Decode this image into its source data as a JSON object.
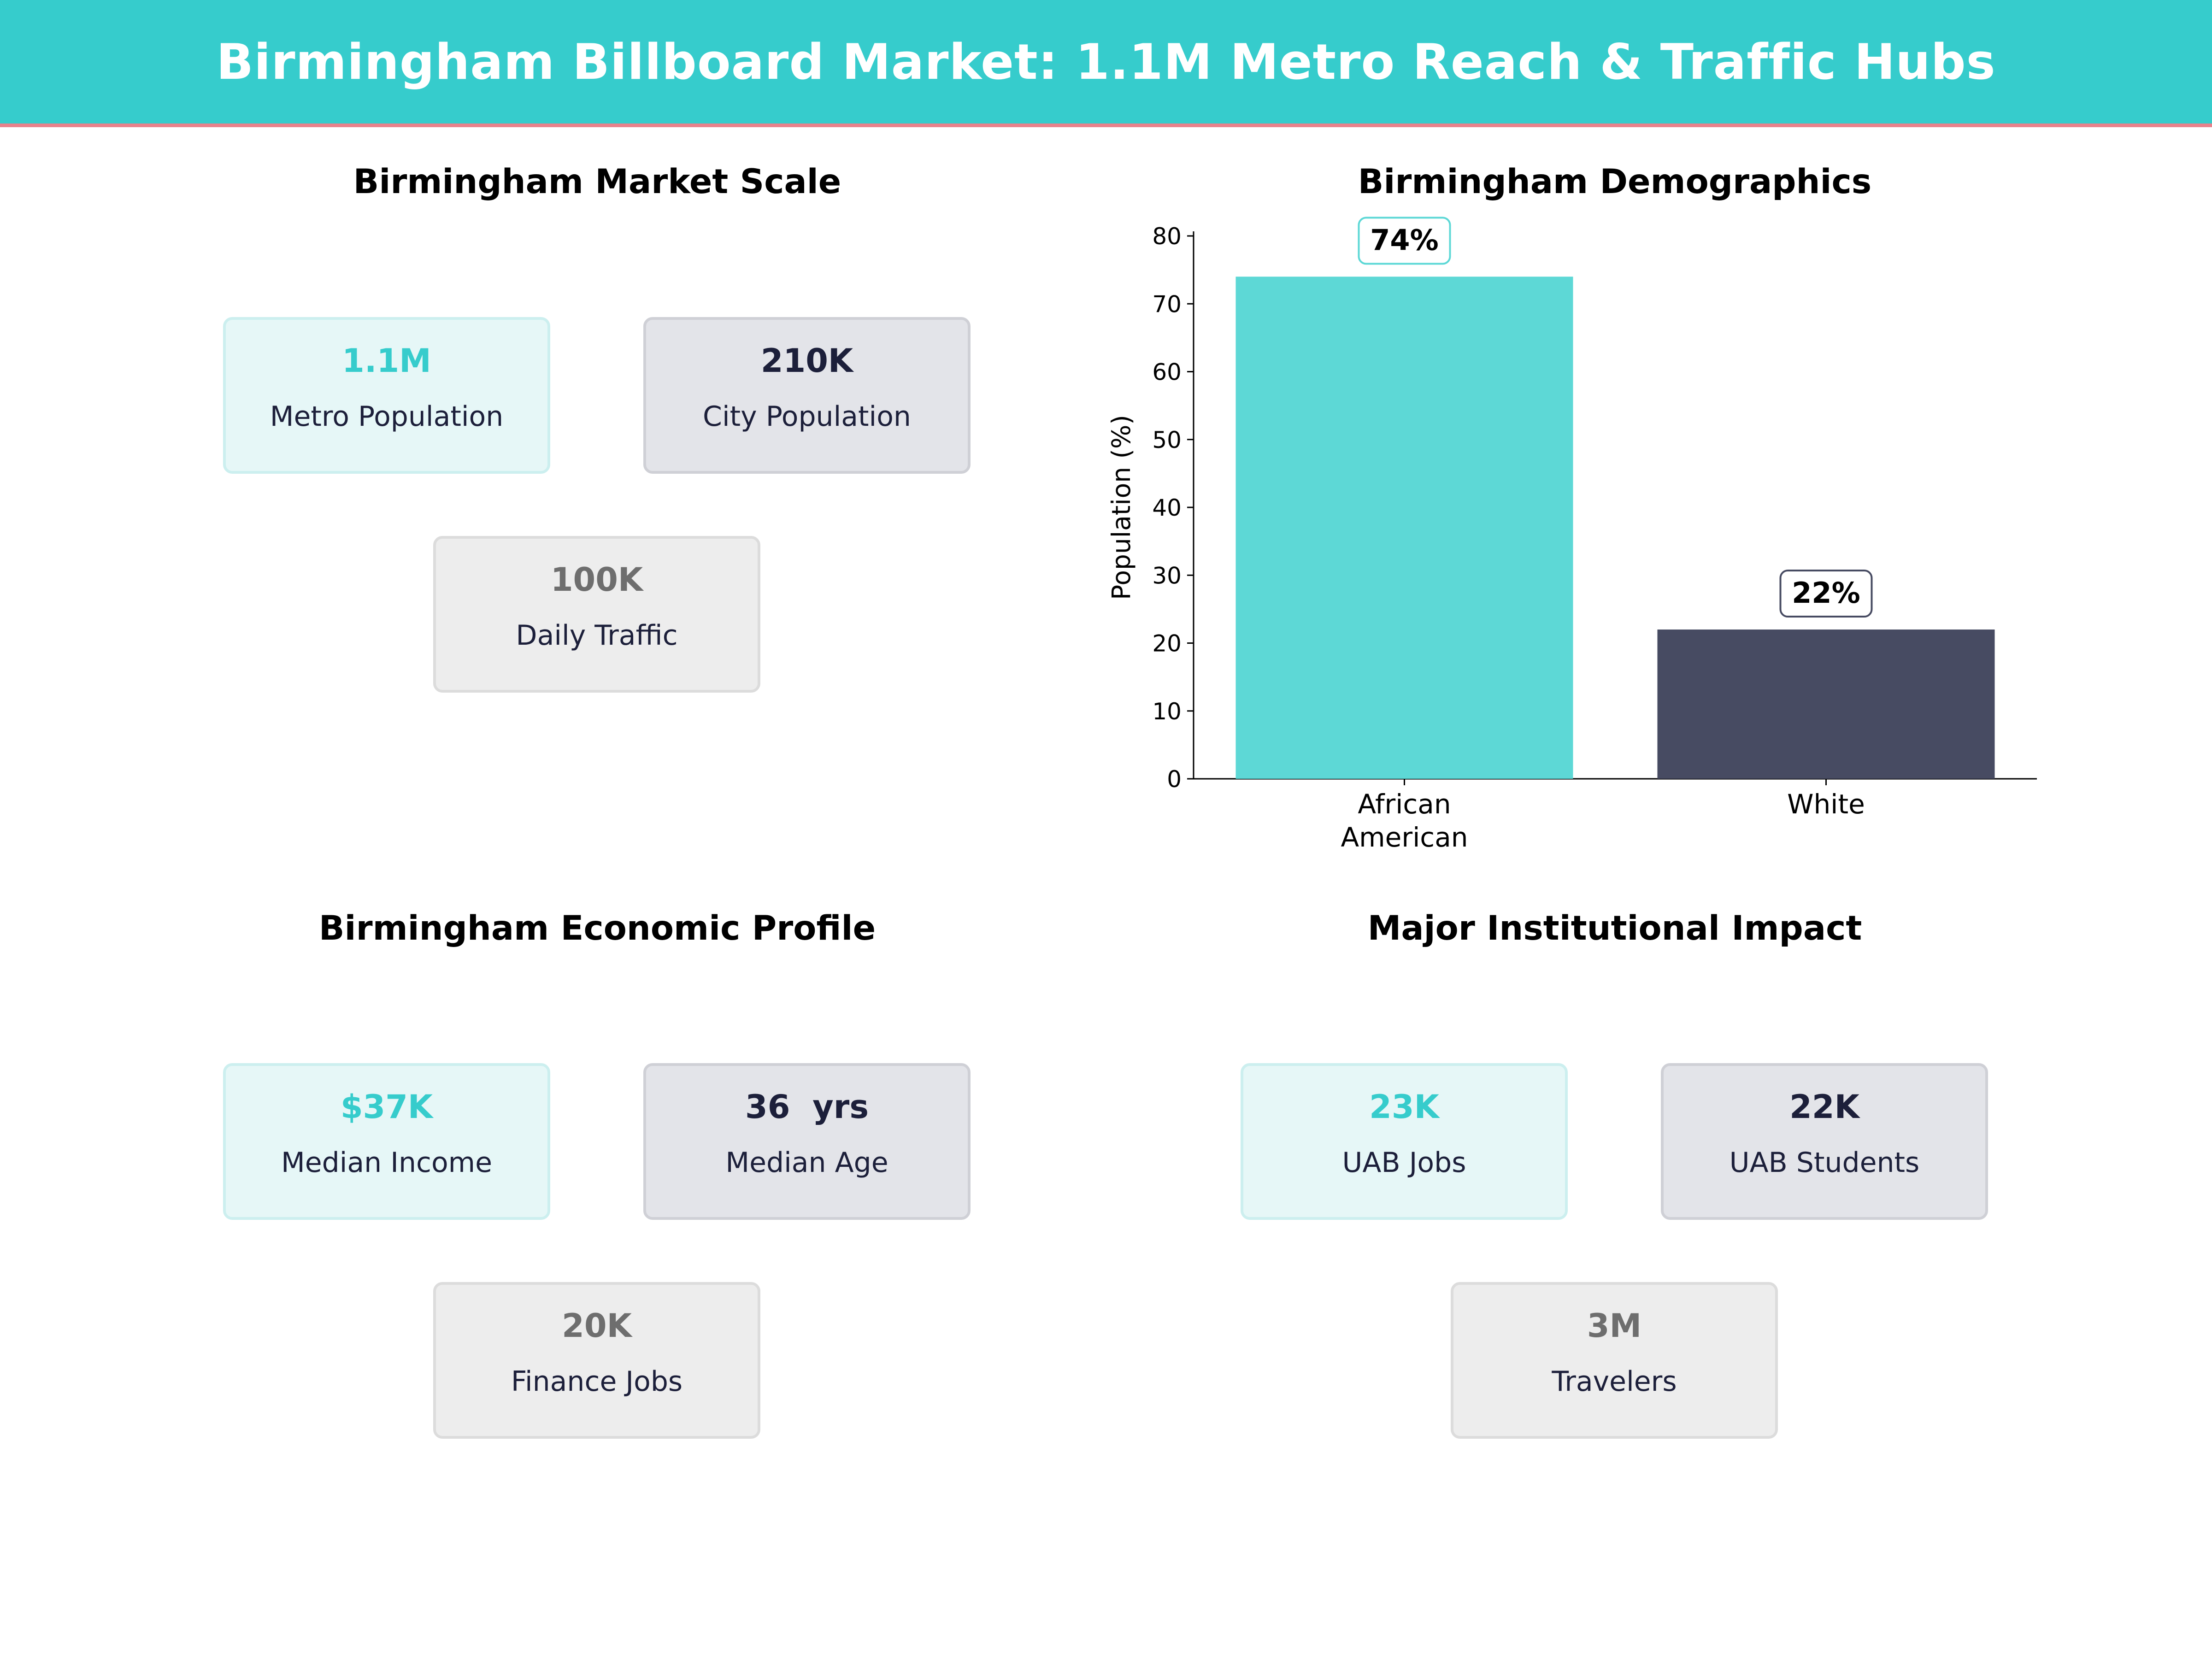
{
  "header": {
    "title": "Birmingham Billboard Market: 1.1M Metro Reach & Traffic Hubs"
  },
  "panels": {
    "market_scale": {
      "title": "Birmingham Market Scale",
      "cards": [
        {
          "value": "1.1M",
          "label": "Metro Population"
        },
        {
          "value": "210K",
          "label": "City Population"
        },
        {
          "value": "100K",
          "label": "Daily Traffic"
        }
      ]
    },
    "demographics": {
      "title": "Birmingham Demographics"
    },
    "economic": {
      "title": "Birmingham Economic Profile",
      "cards": [
        {
          "value": "$37K",
          "label": "Median Income"
        },
        {
          "value": "36  yrs",
          "label": "Median Age"
        },
        {
          "value": "20K",
          "label": "Finance Jobs"
        }
      ]
    },
    "institutional": {
      "title": "Major Institutional Impact",
      "cards": [
        {
          "value": "23K",
          "label": "UAB Jobs"
        },
        {
          "value": "22K",
          "label": "UAB Students"
        },
        {
          "value": "3M",
          "label": "Travelers"
        }
      ]
    }
  },
  "colors": {
    "accent": "#36cccc",
    "dark": "#1c1f3a",
    "grey": "#6e6e6e",
    "banner_border": "#e8828c"
  },
  "chart_data": {
    "type": "bar",
    "categories": [
      "African\nAmerican",
      "White"
    ],
    "values": [
      74,
      22
    ],
    "value_labels": [
      "74%",
      "22%"
    ],
    "colors": [
      "#5dd8d6",
      "#474b62"
    ],
    "ylabel": "Population (%)",
    "yticks": [
      "0",
      "10",
      "20",
      "30",
      "40",
      "50",
      "60",
      "70",
      "80"
    ],
    "ylim": [
      0,
      80
    ],
    "grid": false
  }
}
